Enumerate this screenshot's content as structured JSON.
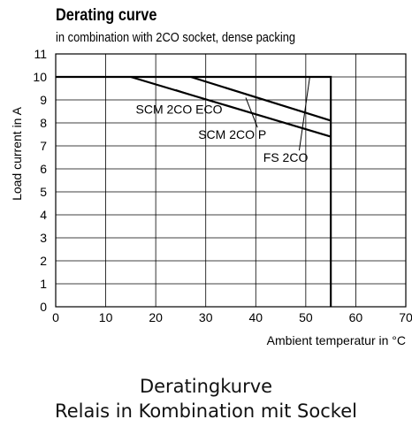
{
  "captions": {
    "line1": "Deratingkurve",
    "line2": "Relais in Kombination mit Sockel"
  },
  "chart_data": {
    "type": "line",
    "title": "Derating curve",
    "subtitle": "in combination with 2CO socket, dense packing",
    "xlabel": "Ambient temperatur in °C",
    "ylabel": "Load  current in A",
    "xlim": [
      0,
      70
    ],
    "ylim": [
      0,
      11
    ],
    "xticks": [
      0,
      10,
      20,
      30,
      40,
      50,
      60,
      70
    ],
    "yticks": [
      0,
      1,
      2,
      3,
      4,
      5,
      6,
      7,
      8,
      9,
      10,
      11
    ],
    "grid": true,
    "series": [
      {
        "name": "FS 2CO",
        "x": [
          0,
          55,
          55
        ],
        "y": [
          10,
          10,
          0
        ]
      },
      {
        "name": "SCM 2CO P",
        "x": [
          27,
          55
        ],
        "y": [
          10,
          8.1
        ]
      },
      {
        "name": "SCM 2CO ECO",
        "x": [
          15,
          55
        ],
        "y": [
          10,
          7.4
        ]
      }
    ],
    "annotations": [
      {
        "text": "SCM 2CO ECO",
        "x": 16,
        "y": 8.4,
        "pointer_to": [
          24,
          9.45
        ]
      },
      {
        "text": "SCM 2CO P",
        "x": 28.5,
        "y": 7.3,
        "pointer_to": [
          38,
          9.1
        ]
      },
      {
        "text": "FS 2CO",
        "x": 41.5,
        "y": 6.3,
        "pointer_to": [
          50.8,
          10
        ]
      }
    ]
  }
}
